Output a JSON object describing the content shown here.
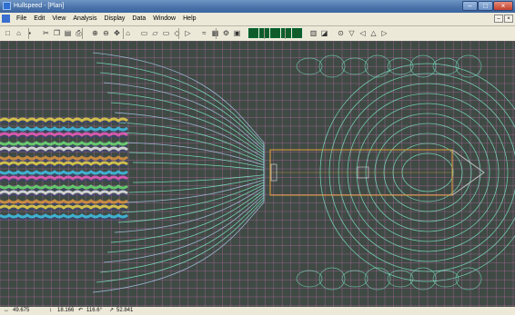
{
  "window": {
    "title": "Hullspeed - [Plan]"
  },
  "menu": {
    "items": [
      "File",
      "Edit",
      "View",
      "Analysis",
      "Display",
      "Data",
      "Window",
      "Help"
    ]
  },
  "toolbar": {
    "icons": [
      "new-icon",
      "open-icon",
      "save-icon",
      "cut-icon",
      "copy-icon",
      "paste-icon",
      "print-icon",
      "zoom-in-icon",
      "zoom-out-icon",
      "pan-icon",
      "home-icon",
      "view-plan-icon",
      "view-profile-icon",
      "view-body-icon",
      "view-3d-icon",
      "view-section-icon",
      "wave-icon",
      "table-icon",
      "settings-icon",
      "render-icon",
      "color-a-icon",
      "color-b-icon",
      "color-c-icon",
      "color-d-icon",
      "color-e-icon",
      "graph-icon",
      "chart-icon",
      "nav-a-icon",
      "nav-b-icon",
      "nav-c-icon",
      "nav-d-icon",
      "nav-e-icon"
    ]
  },
  "status": {
    "x": "49.675",
    "y": "18.166",
    "angle": "116.6°",
    "dist": "52.841"
  },
  "colors": {
    "background": "#3f4a44",
    "grid": "#b46aa0",
    "contour": "#7fe8c8",
    "hull": "#e5a338"
  }
}
